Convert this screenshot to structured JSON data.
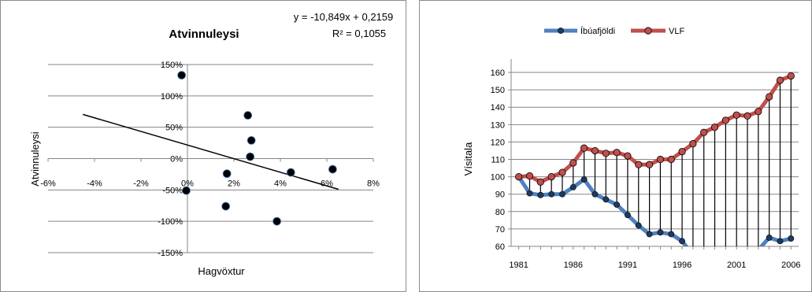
{
  "chart_data": [
    {
      "type": "scatter",
      "title": "Atvinnuleysi",
      "xlabel": "Hagvöxtur",
      "ylabel": "Atvinnuleysi",
      "equation": "y = -10,849x + 0,2159",
      "r_squared": "R² = 0,1055",
      "xlim": [
        -0.06,
        0.08
      ],
      "ylim": [
        -1.5,
        1.5
      ],
      "x_tick_labels": [
        "-6%",
        "-4%",
        "-2%",
        "0%",
        "2%",
        "4%",
        "6%",
        "8%"
      ],
      "y_tick_labels": [
        "150%",
        "100%",
        "50%",
        "0%",
        "-50%",
        "-100%",
        "-150%"
      ],
      "trendline": {
        "slope": -10.849,
        "intercept": 0.2159,
        "x_range": [
          -0.045,
          0.065
        ]
      },
      "points": [
        {
          "x": -0.0025,
          "y": 1.33
        },
        {
          "x": -0.0005,
          "y": -0.51
        },
        {
          "x": 0.0165,
          "y": -0.76
        },
        {
          "x": 0.017,
          "y": -0.24
        },
        {
          "x": 0.026,
          "y": 0.69
        },
        {
          "x": 0.027,
          "y": 0.03
        },
        {
          "x": 0.0275,
          "y": 0.29
        },
        {
          "x": 0.0385,
          "y": -1.0
        },
        {
          "x": 0.0445,
          "y": -0.22
        },
        {
          "x": 0.0625,
          "y": -0.17
        }
      ],
      "marker_color": "#000000",
      "line_color": "#000000",
      "grid": true
    },
    {
      "type": "line",
      "title": "",
      "xlabel": "",
      "ylabel": "Vísitala",
      "x_tick_labels": [
        "1981",
        "1986",
        "1991",
        "1996",
        "2001",
        "2006"
      ],
      "y_tick_labels": [
        "60",
        "70",
        "80",
        "90",
        "100",
        "110",
        "120",
        "130",
        "140",
        "150",
        "160"
      ],
      "ylim": [
        60,
        165
      ],
      "xlim": [
        1980.3,
        2006.7
      ],
      "legend_position": "top",
      "grid": true,
      "x": [
        1981,
        1982,
        1983,
        1984,
        1985,
        1986,
        1987,
        1988,
        1989,
        1990,
        1991,
        1992,
        1993,
        1994,
        1995,
        1996,
        1997,
        1998,
        1999,
        2000,
        2001,
        2002,
        2003,
        2004,
        2005,
        2006
      ],
      "series": [
        {
          "name": "Íbúafjöldi",
          "color": "#4f81bd",
          "values": [
            100,
            90.5,
            89.5,
            90,
            90,
            94,
            98.5,
            90,
            87,
            84,
            78,
            72,
            67,
            68,
            67,
            63,
            55,
            null,
            null,
            null,
            null,
            null,
            58,
            65,
            63,
            64.5
          ]
        },
        {
          "name": "VLF",
          "color": "#c0504d",
          "values": [
            100,
            100.5,
            97,
            100,
            102.5,
            108,
            116.5,
            115,
            113.5,
            114,
            112,
            107,
            107,
            110,
            110,
            114.5,
            119,
            125.5,
            128.5,
            132.5,
            135.5,
            135,
            137.5,
            146,
            155.5,
            158
          ]
        }
      ]
    }
  ]
}
